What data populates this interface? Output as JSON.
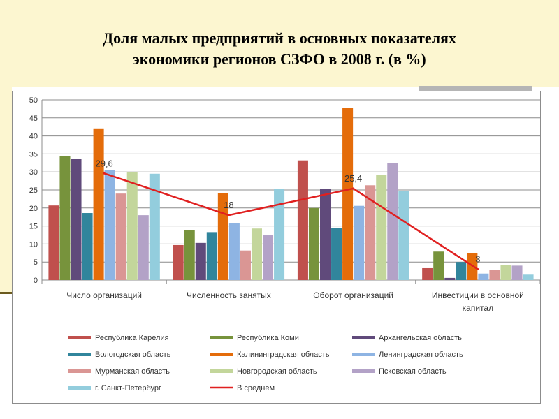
{
  "slide": {
    "title_line1": "Доля малых предприятий в основных показателях",
    "title_line2": "экономики регионов СЗФО в 2008 г. (в %)"
  },
  "chart_data": {
    "type": "bar",
    "categories": [
      "Число организаций",
      "Численность занятых",
      "Оборот организаций",
      "Инвестиции в основной капитал"
    ],
    "category_lines": [
      [
        "Число организаций"
      ],
      [
        "Численность занятых"
      ],
      [
        "Оборот организаций"
      ],
      [
        "Инвестиции в основной",
        "капитал"
      ]
    ],
    "ylim": [
      0,
      50
    ],
    "yticks": [
      0,
      5,
      10,
      15,
      20,
      25,
      30,
      35,
      40,
      45,
      50
    ],
    "grid": true,
    "legend_position": "bottom",
    "series": [
      {
        "name": "Республика Карелия",
        "color": "#c0504d",
        "values": [
          20.7,
          9.7,
          33.2,
          3.3
        ]
      },
      {
        "name": "Республика Коми",
        "color": "#77933c",
        "values": [
          34.4,
          13.9,
          20.0,
          7.9
        ]
      },
      {
        "name": "Архангельская область",
        "color": "#604a7b",
        "values": [
          33.6,
          10.3,
          25.3,
          0.6
        ]
      },
      {
        "name": "Вологодская область",
        "color": "#31859c",
        "values": [
          18.6,
          13.3,
          14.4,
          5.0
        ]
      },
      {
        "name": "Калининградская область",
        "color": "#e46c0a",
        "values": [
          41.9,
          24.1,
          47.7,
          7.4
        ]
      },
      {
        "name": "Ленинградская область",
        "color": "#8eb4e3",
        "values": [
          30.6,
          15.8,
          20.6,
          1.8
        ]
      },
      {
        "name": "Мурманская область",
        "color": "#da9694",
        "values": [
          24.0,
          8.2,
          26.3,
          2.8
        ]
      },
      {
        "name": "Новгородская область",
        "color": "#c3d69b",
        "values": [
          30.0,
          14.3,
          29.2,
          4.1
        ]
      },
      {
        "name": "Псковская область",
        "color": "#b3a2c7",
        "values": [
          18.0,
          12.4,
          32.4,
          4.0
        ]
      },
      {
        "name": "г. Санкт-Петербург",
        "color": "#93cddd",
        "values": [
          29.5,
          25.3,
          24.8,
          1.5
        ]
      }
    ],
    "line_series": {
      "name": "В среднем",
      "color": "#e02020",
      "values": [
        29.6,
        18,
        25.4,
        3
      ],
      "labels": [
        "29,6",
        "18",
        "25,4",
        "3"
      ]
    }
  }
}
